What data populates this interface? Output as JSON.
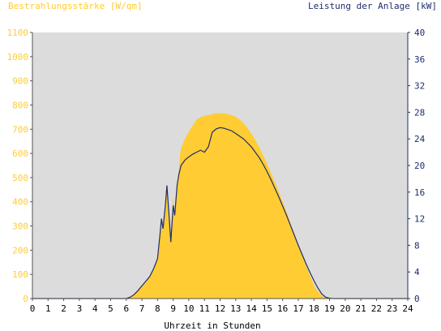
{
  "colors": {
    "plot_bg": "#dcdcdc",
    "irradiance": "#ffcc33",
    "power_line": "#1f2d6b",
    "left_axis": "#ffcc33",
    "right_axis": "#1f2d6b",
    "frame": "#555555"
  },
  "chart_data": {
    "type": "area",
    "title_left": "Bestrahlungsstärke [W/qm]",
    "title_right": "Leistung der Anlage [kW]",
    "xlabel": "Uhrzeit in Stunden",
    "xlim": [
      0,
      24
    ],
    "x_ticks": [
      0,
      1,
      2,
      3,
      4,
      5,
      6,
      7,
      8,
      9,
      10,
      11,
      12,
      13,
      14,
      15,
      16,
      17,
      18,
      19,
      20,
      21,
      22,
      23,
      24
    ],
    "ylim_left": [
      0,
      1100
    ],
    "y_ticks_left": [
      0,
      100,
      200,
      300,
      400,
      500,
      600,
      700,
      800,
      900,
      1000,
      1100
    ],
    "ylim_right": [
      0,
      40
    ],
    "y_ticks_right": [
      0,
      4,
      8,
      12,
      16,
      20,
      24,
      28,
      32,
      36,
      40
    ],
    "grid": false,
    "series": [
      {
        "name": "Bestrahlungsstärke [W/qm]",
        "axis": "left",
        "style": "area",
        "x": [
          0,
          6.0,
          6.25,
          6.5,
          6.75,
          7.0,
          7.25,
          7.5,
          7.75,
          8.0,
          8.15,
          8.25,
          8.35,
          8.5,
          8.6,
          8.75,
          8.85,
          9.0,
          9.1,
          9.25,
          9.35,
          9.45,
          9.5,
          9.6,
          9.75,
          10.0,
          10.25,
          10.5,
          10.75,
          11.0,
          11.25,
          11.5,
          11.75,
          12.0,
          12.25,
          12.5,
          12.75,
          13.0,
          13.25,
          13.5,
          13.75,
          14.0,
          14.25,
          14.5,
          14.75,
          15.0,
          15.25,
          15.5,
          15.75,
          16.0,
          16.25,
          16.5,
          16.75,
          17.0,
          17.25,
          17.5,
          17.75,
          18.0,
          18.25,
          18.5,
          18.75,
          19.0,
          19.25,
          24
        ],
        "y": [
          0,
          0,
          8,
          20,
          35,
          50,
          65,
          90,
          120,
          160,
          250,
          320,
          280,
          380,
          450,
          330,
          250,
          420,
          340,
          470,
          520,
          600,
          620,
          635,
          660,
          690,
          715,
          740,
          750,
          755,
          758,
          762,
          766,
          766,
          765,
          762,
          758,
          752,
          740,
          725,
          705,
          682,
          655,
          625,
          592,
          557,
          520,
          481,
          442,
          400,
          357,
          312,
          268,
          222,
          178,
          135,
          95,
          55,
          30,
          12,
          4,
          1,
          0,
          0
        ]
      },
      {
        "name": "Leistung der Anlage [kW]",
        "axis": "right",
        "style": "line",
        "x": [
          0,
          6.0,
          6.25,
          6.5,
          6.75,
          7.0,
          7.25,
          7.5,
          7.75,
          8.0,
          8.15,
          8.25,
          8.35,
          8.5,
          8.6,
          8.75,
          8.85,
          9.0,
          9.1,
          9.25,
          9.35,
          9.45,
          9.5,
          9.75,
          10.0,
          10.25,
          10.5,
          10.75,
          11.0,
          11.25,
          11.5,
          11.75,
          12.0,
          12.25,
          12.5,
          12.75,
          13.0,
          13.25,
          13.5,
          13.75,
          14.0,
          14.25,
          14.5,
          14.75,
          15.0,
          15.25,
          15.5,
          15.75,
          16.0,
          16.25,
          16.5,
          16.75,
          17.0,
          17.25,
          17.5,
          17.75,
          18.0,
          18.25,
          18.5,
          18.75,
          19.0,
          19.25,
          24
        ],
        "y": [
          0,
          0,
          0.2,
          0.6,
          1.2,
          1.9,
          2.6,
          3.3,
          4.5,
          6.0,
          9.5,
          12.0,
          10.5,
          14.0,
          17.0,
          12.0,
          8.5,
          14.0,
          12.5,
          17.0,
          18.5,
          19.5,
          20.0,
          20.8,
          21.3,
          21.7,
          22.0,
          22.3,
          22.0,
          22.8,
          25.0,
          25.5,
          25.7,
          25.6,
          25.4,
          25.2,
          24.8,
          24.4,
          24.0,
          23.4,
          22.8,
          22.0,
          21.2,
          20.2,
          19.1,
          17.9,
          16.6,
          15.3,
          13.9,
          12.5,
          11.0,
          9.5,
          8.0,
          6.6,
          5.2,
          3.9,
          2.7,
          1.6,
          0.7,
          0.2,
          0.05,
          0,
          0
        ]
      }
    ]
  }
}
